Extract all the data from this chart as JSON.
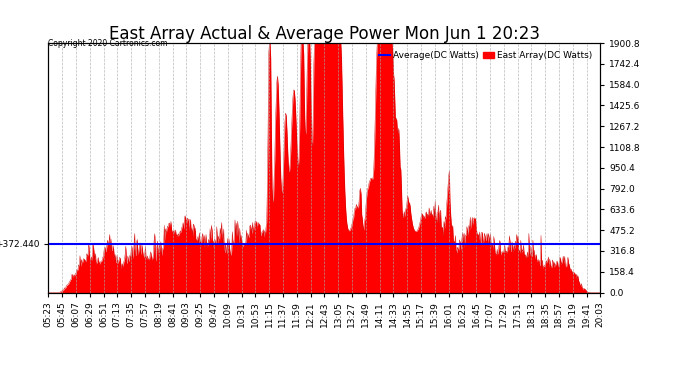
{
  "title": "East Array Actual & Average Power Mon Jun 1 20:23",
  "copyright": "Copyright 2020 Cartronics.com",
  "legend_avg": "Average(DC Watts)",
  "legend_east": "East Array(DC Watts)",
  "avg_value": 372.44,
  "y_max": 1900.8,
  "y_min": 0.0,
  "y_ticks": [
    0.0,
    158.4,
    316.8,
    475.2,
    633.6,
    792.0,
    950.4,
    1108.8,
    1267.2,
    1425.6,
    1584.0,
    1742.4,
    1900.8
  ],
  "avg_line_color": "#0000ff",
  "east_fill_color": "#ff0000",
  "east_line_color": "#cc0000",
  "background_color": "#ffffff",
  "grid_color": "#aaaaaa",
  "title_fontsize": 12,
  "tick_fontsize": 6.5,
  "x_labels": [
    "05:23",
    "05:45",
    "06:07",
    "06:29",
    "06:51",
    "07:13",
    "07:35",
    "07:57",
    "08:19",
    "08:41",
    "09:03",
    "09:25",
    "09:47",
    "10:09",
    "10:31",
    "10:53",
    "11:15",
    "11:37",
    "11:59",
    "12:21",
    "12:43",
    "13:05",
    "13:27",
    "13:49",
    "14:11",
    "14:33",
    "14:55",
    "15:17",
    "15:39",
    "16:01",
    "16:23",
    "16:45",
    "17:07",
    "17:29",
    "17:51",
    "18:13",
    "18:35",
    "18:57",
    "19:19",
    "19:41",
    "20:03"
  ],
  "num_points": 820
}
